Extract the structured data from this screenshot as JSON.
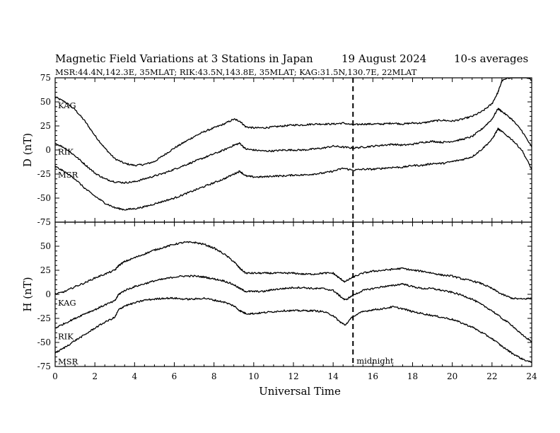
{
  "chart_data": {
    "type": "line",
    "title": "Magnetic Field Variations at 3 Stations in Japan",
    "date": "19  August  2024",
    "averaging": "10-s averages",
    "stations_info": "MSR:44.4N,142.3E, 35MLAT;   RIK:43.5N,143.8E, 35MLAT;   KAG:31.5N,130.7E, 22MLAT",
    "xlabel": "Universal Time",
    "xlim": [
      0,
      24
    ],
    "x_ticks": [
      "0",
      "2",
      "4",
      "6",
      "8",
      "10",
      "12",
      "14",
      "16",
      "18",
      "20",
      "22",
      "24"
    ],
    "midnight": {
      "x": 15,
      "label": "midnight"
    },
    "panels": [
      {
        "ylabel": "D (nT)",
        "ylim": [
          -75,
          75
        ],
        "y_ticks": [
          "75",
          "50",
          "25",
          "0",
          "-25",
          "-50",
          "-75"
        ],
        "series": [
          {
            "name": "KAG",
            "x": [
              0,
              0.5,
              1,
              1.5,
              2,
              2.5,
              3,
              3.5,
              4,
              4.5,
              5,
              5.5,
              6,
              6.5,
              7,
              7.5,
              8,
              8.5,
              9,
              9.3,
              9.6,
              10,
              10.5,
              11,
              11.5,
              12,
              12.5,
              13,
              13.5,
              14,
              14.5,
              15,
              15.5,
              16,
              16.5,
              17,
              17.5,
              18,
              18.5,
              19,
              19.5,
              20,
              20.5,
              21,
              21.5,
              22,
              22.3,
              22.5,
              23,
              23.5,
              24
            ],
            "y": [
              55,
              50,
              42,
              30,
              15,
              2,
              -9,
              -14,
              -16,
              -15,
              -12,
              -5,
              2,
              8,
              14,
              19,
              23,
              27,
              32,
              30,
              24,
              23,
              23,
              24,
              25,
              26,
              26,
              27,
              27,
              27,
              28,
              26,
              27,
              27,
              27,
              28,
              27,
              28,
              28,
              30,
              31,
              30,
              32,
              35,
              40,
              48,
              60,
              72,
              76,
              76,
              73
            ]
          },
          {
            "name": "RIK",
            "x": [
              0,
              0.5,
              1,
              1.5,
              2,
              2.5,
              3,
              3.5,
              4,
              4.5,
              5,
              5.5,
              6,
              6.5,
              7,
              7.5,
              8,
              8.5,
              9,
              9.3,
              9.6,
              10,
              10.5,
              11,
              11.5,
              12,
              12.5,
              13,
              13.5,
              14,
              14.5,
              15,
              15.5,
              16,
              16.5,
              17,
              17.5,
              18,
              18.5,
              19,
              19.5,
              20,
              20.5,
              21,
              21.5,
              22,
              22.3,
              22.5,
              23,
              23.5,
              24
            ],
            "y": [
              7,
              2,
              -6,
              -15,
              -24,
              -30,
              -33,
              -34,
              -33,
              -30,
              -27,
              -24,
              -20,
              -16,
              -12,
              -8,
              -4,
              0,
              5,
              7,
              1,
              0,
              -1,
              -1,
              0,
              0,
              0,
              1,
              2,
              4,
              3,
              2,
              3,
              4,
              5,
              6,
              5,
              6,
              8,
              9,
              8,
              9,
              11,
              14,
              22,
              32,
              43,
              40,
              32,
              20,
              3
            ]
          },
          {
            "name": "MSR",
            "x": [
              0,
              0.5,
              1,
              1.5,
              2,
              2.5,
              3,
              3.5,
              4,
              4.5,
              5,
              5.5,
              6,
              6.5,
              7,
              7.5,
              8,
              8.5,
              9,
              9.3,
              9.6,
              10,
              10.5,
              11,
              11.5,
              12,
              12.5,
              13,
              13.5,
              14,
              14.5,
              15,
              15.5,
              16,
              16.5,
              17,
              17.5,
              18,
              18.5,
              19,
              19.5,
              20,
              20.5,
              21,
              21.5,
              22,
              22.3,
              22.5,
              23,
              23.5,
              24
            ],
            "y": [
              -17,
              -23,
              -30,
              -40,
              -48,
              -55,
              -60,
              -62,
              -61,
              -59,
              -56,
              -53,
              -50,
              -46,
              -42,
              -38,
              -34,
              -30,
              -25,
              -22,
              -27,
              -28,
              -28,
              -27,
              -27,
              -26,
              -26,
              -25,
              -24,
              -22,
              -19,
              -21,
              -20,
              -20,
              -19,
              -18,
              -18,
              -16,
              -16,
              -14,
              -14,
              -12,
              -10,
              -7,
              1,
              11,
              22,
              19,
              11,
              0,
              -20
            ]
          }
        ]
      },
      {
        "ylabel": "H (nT)",
        "ylim": [
          -75,
          75
        ],
        "y_ticks": [
          "75",
          "50",
          "25",
          "0",
          "-25",
          "-50",
          "-75"
        ],
        "series": [
          {
            "name": "KAG",
            "x": [
              0,
              0.5,
              1,
              1.5,
              2,
              2.5,
              3,
              3.2,
              3.5,
              4,
              4.5,
              5,
              5.5,
              6,
              6.5,
              7,
              7.5,
              8,
              8.5,
              9,
              9.3,
              9.6,
              10,
              10.5,
              11,
              11.5,
              12,
              12.5,
              13,
              13.5,
              14,
              14.3,
              14.6,
              15,
              15.5,
              16,
              16.5,
              17,
              17.5,
              18,
              18.5,
              19,
              19.5,
              20,
              20.5,
              21,
              21.5,
              22,
              22.5,
              23,
              23.5,
              24
            ],
            "y": [
              0,
              3,
              8,
              12,
              17,
              21,
              25,
              30,
              34,
              38,
              42,
              46,
              49,
              52,
              54,
              54,
              52,
              48,
              42,
              34,
              27,
              22,
              22,
              22,
              22,
              22,
              22,
              21,
              21,
              22,
              22,
              17,
              13,
              18,
              22,
              24,
              25,
              26,
              27,
              25,
              24,
              22,
              20,
              19,
              16,
              14,
              11,
              6,
              0,
              -4,
              -5,
              -4
            ]
          },
          {
            "name": "RIK",
            "x": [
              0,
              0.5,
              1,
              1.5,
              2,
              2.5,
              3,
              3.2,
              3.5,
              4,
              4.5,
              5,
              5.5,
              6,
              6.5,
              7,
              7.5,
              8,
              8.5,
              9,
              9.3,
              9.6,
              10,
              10.5,
              11,
              11.5,
              12,
              12.5,
              13,
              13.5,
              14,
              14.3,
              14.6,
              15,
              15.5,
              16,
              16.5,
              17,
              17.5,
              18,
              18.5,
              19,
              19.5,
              20,
              20.5,
              21,
              21.5,
              22,
              22.5,
              23,
              23.5,
              24
            ],
            "y": [
              -35,
              -30,
              -25,
              -20,
              -16,
              -11,
              -7,
              0,
              4,
              8,
              11,
              14,
              16,
              18,
              19,
              19,
              18,
              16,
              14,
              10,
              6,
              3,
              3,
              3,
              5,
              6,
              7,
              7,
              6,
              6,
              4,
              -1,
              -6,
              -1,
              4,
              6,
              8,
              9,
              11,
              8,
              6,
              6,
              4,
              2,
              -1,
              -5,
              -11,
              -17,
              -25,
              -32,
              -42,
              -49
            ]
          },
          {
            "name": "MSR",
            "x": [
              0,
              0.5,
              1,
              1.5,
              2,
              2.5,
              3,
              3.2,
              3.5,
              4,
              4.5,
              5,
              5.5,
              6,
              6.5,
              7,
              7.5,
              8,
              8.5,
              9,
              9.3,
              9.6,
              10,
              10.5,
              11,
              11.5,
              12,
              12.5,
              13,
              13.5,
              14,
              14.3,
              14.6,
              15,
              15.5,
              16,
              16.5,
              17,
              17.5,
              18,
              18.5,
              19,
              19.5,
              20,
              20.5,
              21,
              21.5,
              22,
              22.5,
              23,
              23.5,
              24
            ],
            "y": [
              -61,
              -55,
              -48,
              -42,
              -35,
              -29,
              -24,
              -16,
              -12,
              -9,
              -6,
              -5,
              -4,
              -4,
              -5,
              -5,
              -4,
              -6,
              -8,
              -12,
              -17,
              -20,
              -20,
              -19,
              -18,
              -17,
              -17,
              -17,
              -17,
              -18,
              -22,
              -28,
              -32,
              -23,
              -18,
              -16,
              -15,
              -13,
              -15,
              -18,
              -20,
              -22,
              -24,
              -26,
              -30,
              -34,
              -40,
              -46,
              -54,
              -61,
              -67,
              -71
            ]
          }
        ]
      }
    ]
  }
}
